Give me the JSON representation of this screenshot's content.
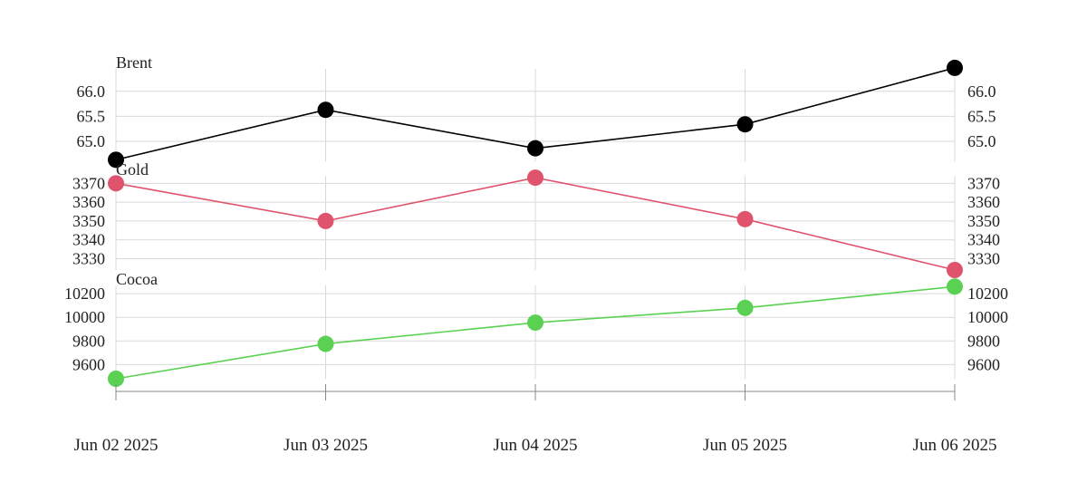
{
  "chart_data": {
    "type": "line",
    "x": [
      "Jun 02 2025",
      "Jun 03 2025",
      "Jun 04 2025",
      "Jun 05 2025",
      "Jun 06 2025"
    ],
    "panels": [
      {
        "name": "Brent",
        "color": "#000000",
        "values": [
          64.63,
          65.63,
          64.86,
          65.34,
          66.47
        ],
        "ylim": [
          64.6,
          66.45
        ],
        "yticks": [
          65.0,
          65.5,
          66.0
        ],
        "tick_format": "fixed1"
      },
      {
        "name": "Gold",
        "color": "#e0536d",
        "values": [
          3370,
          3350,
          3373,
          3351,
          3324
        ],
        "ylim": [
          3324,
          3374
        ],
        "yticks": [
          3330,
          3340,
          3350,
          3360,
          3370
        ],
        "tick_format": "int"
      },
      {
        "name": "Cocoa",
        "color": "#5ad152",
        "values": [
          9480,
          9775,
          9955,
          10080,
          10260
        ],
        "ylim": [
          9480,
          10270
        ],
        "yticks": [
          9600,
          9800,
          10000,
          10200
        ],
        "tick_format": "int"
      }
    ],
    "grid": true,
    "legend": "none"
  }
}
